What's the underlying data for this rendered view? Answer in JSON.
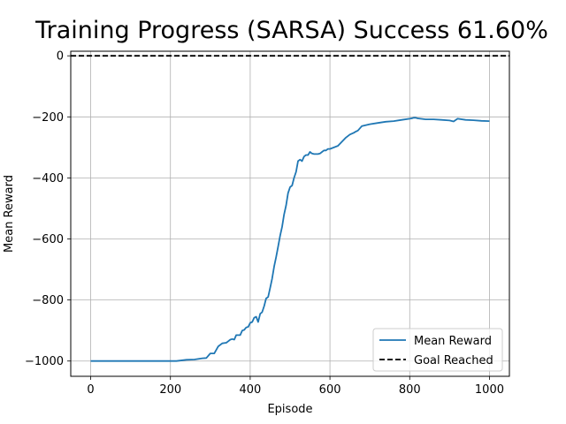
{
  "chart_data": {
    "type": "line",
    "title": "Training Progress (SARSA) Success 61.60%",
    "xlabel": "Episode",
    "ylabel": "Mean Reward",
    "xlim": [
      -50,
      1050
    ],
    "ylim": [
      -1050,
      15
    ],
    "xticks": [
      0,
      200,
      400,
      600,
      800,
      1000
    ],
    "yticks": [
      0,
      -200,
      -400,
      -600,
      -800,
      -1000
    ],
    "xtick_labels": [
      "0",
      "200",
      "400",
      "600",
      "800",
      "1000"
    ],
    "ytick_labels": [
      "0",
      "−200",
      "−400",
      "−600",
      "−800",
      "−1000"
    ],
    "grid": true,
    "legend_position": "lower-right",
    "series": [
      {
        "name": "Mean Reward",
        "color": "#1f77b4",
        "style": "solid",
        "x": [
          0,
          100,
          200,
          215,
          240,
          260,
          280,
          290,
          300,
          310,
          320,
          330,
          340,
          345,
          350,
          355,
          360,
          365,
          370,
          375,
          380,
          385,
          390,
          395,
          400,
          405,
          410,
          415,
          420,
          425,
          430,
          435,
          440,
          445,
          450,
          455,
          460,
          465,
          470,
          475,
          480,
          485,
          490,
          495,
          500,
          505,
          510,
          515,
          520,
          525,
          530,
          535,
          540,
          545,
          550,
          555,
          560,
          565,
          570,
          575,
          580,
          585,
          590,
          595,
          600,
          620,
          640,
          650,
          660,
          665,
          670,
          680,
          700,
          720,
          740,
          760,
          780,
          800,
          805,
          810,
          815,
          820,
          840,
          860,
          880,
          900,
          910,
          920,
          940,
          960,
          980,
          1000
        ],
        "y": [
          -1000,
          -1000,
          -1000,
          -1000,
          -996,
          -995,
          -991,
          -990,
          -975,
          -975,
          -952,
          -942,
          -940,
          -935,
          -930,
          -928,
          -930,
          -915,
          -915,
          -915,
          -900,
          -898,
          -890,
          -888,
          -875,
          -872,
          -858,
          -855,
          -872,
          -845,
          -840,
          -820,
          -795,
          -790,
          -760,
          -730,
          -690,
          -660,
          -625,
          -590,
          -560,
          -520,
          -490,
          -450,
          -430,
          -425,
          -400,
          -380,
          -345,
          -340,
          -345,
          -330,
          -325,
          -325,
          -315,
          -320,
          -322,
          -322,
          -322,
          -320,
          -315,
          -310,
          -310,
          -305,
          -305,
          -295,
          -268,
          -258,
          -252,
          -248,
          -245,
          -230,
          -224,
          -220,
          -216,
          -214,
          -210,
          -206,
          -205,
          -203,
          -203,
          -205,
          -208,
          -208,
          -210,
          -212,
          -215,
          -206,
          -210,
          -211,
          -213,
          -214
        ]
      },
      {
        "name": "Goal Reached",
        "color": "#000000",
        "style": "dashed",
        "x": [
          -50,
          1050
        ],
        "y": [
          0,
          0
        ]
      }
    ]
  }
}
